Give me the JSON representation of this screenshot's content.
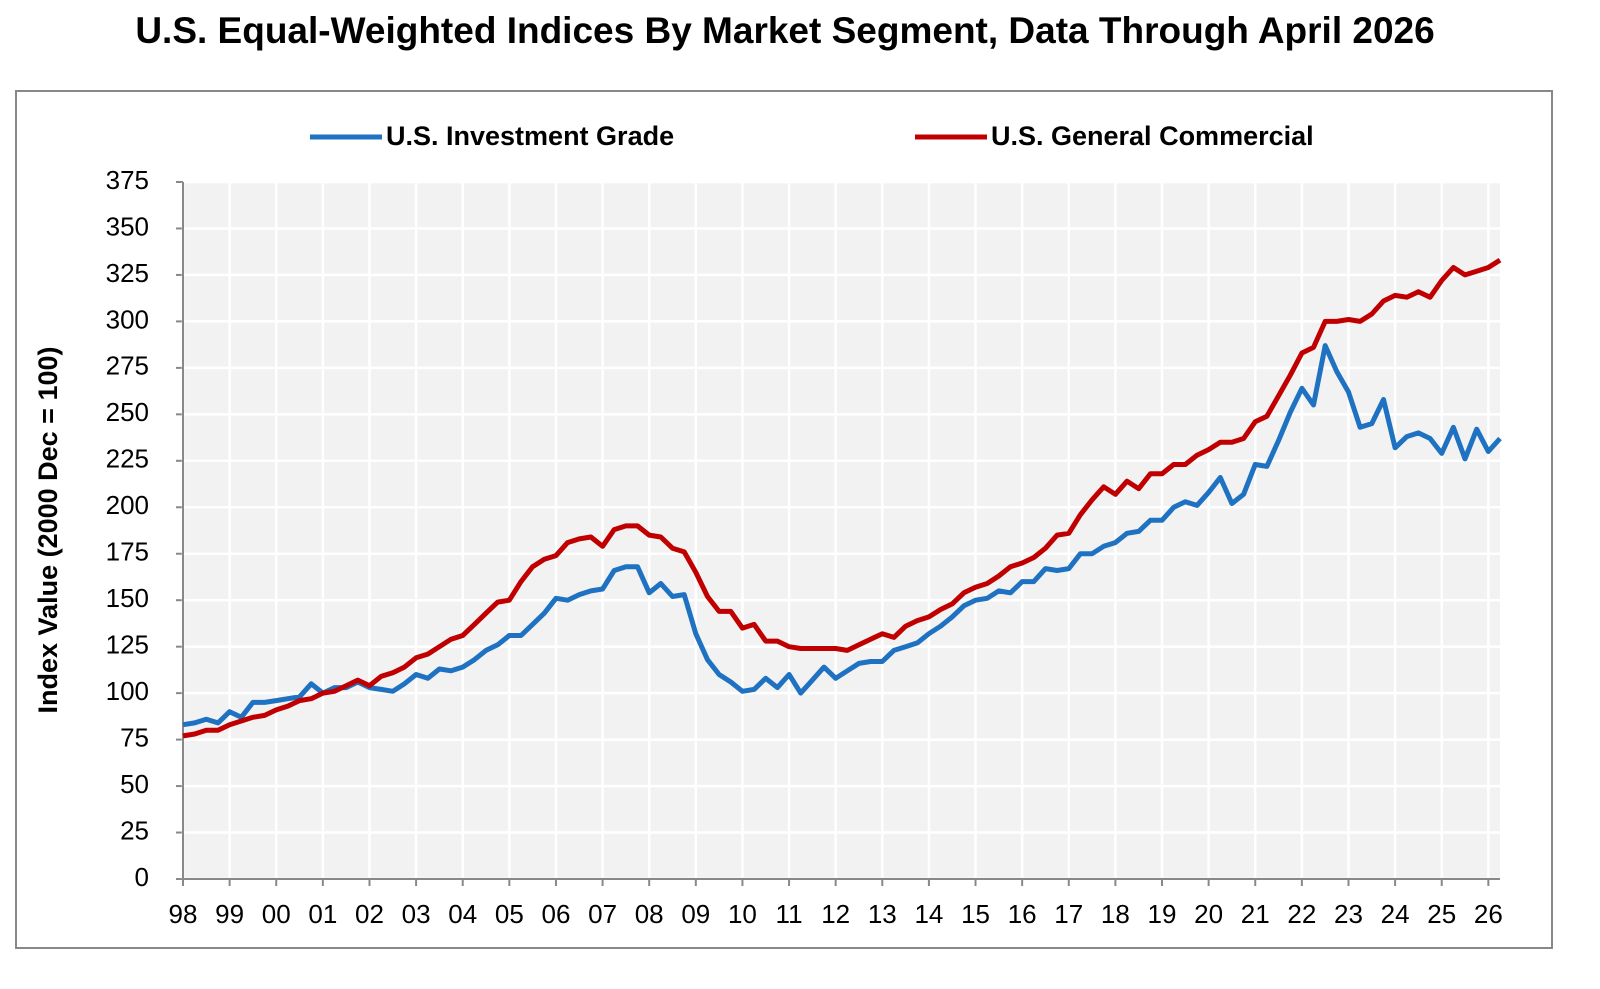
{
  "chart_data": {
    "type": "line",
    "title": "U.S. Equal-Weighted Indices By Market Segment, Data Through April 2026",
    "y_label": "Index Value (2000 Dec = 100)",
    "x": [
      1998,
      1998.25,
      1998.5,
      1998.75,
      1999,
      1999.25,
      1999.5,
      1999.75,
      2000,
      2000.25,
      2000.5,
      2000.75,
      2001,
      2001.25,
      2001.5,
      2001.75,
      2002,
      2002.25,
      2002.5,
      2002.75,
      2003,
      2003.25,
      2003.5,
      2003.75,
      2004,
      2004.25,
      2004.5,
      2004.75,
      2005,
      2005.25,
      2005.5,
      2005.75,
      2006,
      2006.25,
      2006.5,
      2006.75,
      2007,
      2007.25,
      2007.5,
      2007.75,
      2008,
      2008.25,
      2008.5,
      2008.75,
      2009,
      2009.25,
      2009.5,
      2009.75,
      2010,
      2010.25,
      2010.5,
      2010.75,
      2011,
      2011.25,
      2011.5,
      2011.75,
      2012,
      2012.25,
      2012.5,
      2012.75,
      2013,
      2013.25,
      2013.5,
      2013.75,
      2014,
      2014.25,
      2014.5,
      2014.75,
      2015,
      2015.25,
      2015.5,
      2015.75,
      2016,
      2016.25,
      2016.5,
      2016.75,
      2017,
      2017.25,
      2017.5,
      2017.75,
      2018,
      2018.25,
      2018.5,
      2018.75,
      2019,
      2019.25,
      2019.5,
      2019.75,
      2020,
      2020.25,
      2020.5,
      2020.75,
      2021,
      2021.25,
      2021.5,
      2021.75,
      2022,
      2022.25,
      2022.5,
      2022.75,
      2023,
      2023.25,
      2023.5,
      2023.75,
      2024,
      2024.25,
      2024.5,
      2024.75,
      2025,
      2025.25,
      2025.5,
      2025.75,
      2026,
      2026.25
    ],
    "series": [
      {
        "name": "U.S. Investment Grade",
        "color": "#1f72c1",
        "values": [
          83,
          84,
          86,
          84,
          90,
          87,
          95,
          95,
          96,
          97,
          98,
          105,
          100,
          103,
          103,
          106,
          103,
          102,
          101,
          105,
          110,
          108,
          113,
          112,
          114,
          118,
          123,
          126,
          131,
          131,
          137,
          143,
          151,
          150,
          153,
          155,
          156,
          166,
          168,
          168,
          154,
          159,
          152,
          153,
          132,
          118,
          110,
          106,
          101,
          102,
          108,
          103,
          110,
          100,
          107,
          114,
          108,
          112,
          116,
          117,
          117,
          123,
          125,
          127,
          132,
          136,
          141,
          147,
          150,
          151,
          155,
          154,
          160,
          160,
          167,
          166,
          167,
          175,
          175,
          179,
          181,
          186,
          187,
          193,
          193,
          200,
          203,
          201,
          208,
          216,
          202,
          207,
          223,
          222,
          236,
          251,
          264,
          255,
          287,
          273,
          262,
          243,
          245,
          258,
          232,
          238,
          240,
          237,
          229,
          243,
          226,
          242,
          230,
          237
        ]
      },
      {
        "name": "U.S. General Commercial",
        "color": "#c00000",
        "values": [
          77,
          78,
          80,
          80,
          83,
          85,
          87,
          88,
          91,
          93,
          96,
          97,
          100,
          101,
          104,
          107,
          104,
          109,
          111,
          114,
          119,
          121,
          125,
          129,
          131,
          137,
          143,
          149,
          150,
          160,
          168,
          172,
          174,
          181,
          183,
          184,
          179,
          188,
          190,
          190,
          185,
          184,
          178,
          176,
          165,
          152,
          144,
          144,
          135,
          137,
          128,
          128,
          125,
          124,
          124,
          124,
          124,
          123,
          126,
          129,
          132,
          130,
          136,
          139,
          141,
          145,
          148,
          154,
          157,
          159,
          163,
          168,
          170,
          173,
          178,
          185,
          186,
          196,
          204,
          211,
          207,
          214,
          210,
          218,
          218,
          223,
          223,
          228,
          231,
          235,
          235,
          237,
          246,
          249,
          260,
          271,
          283,
          286,
          300,
          300,
          301,
          300,
          304,
          311,
          314,
          313,
          316,
          313,
          322,
          329,
          325,
          327,
          329,
          333
        ]
      }
    ],
    "xlim": [
      1998,
      2026.25
    ],
    "xticks": [
      {
        "value": 1998,
        "label": "98"
      },
      {
        "value": 1999,
        "label": "99"
      },
      {
        "value": 2000,
        "label": "00"
      },
      {
        "value": 2001,
        "label": "01"
      },
      {
        "value": 2002,
        "label": "02"
      },
      {
        "value": 2003,
        "label": "03"
      },
      {
        "value": 2004,
        "label": "04"
      },
      {
        "value": 2005,
        "label": "05"
      },
      {
        "value": 2006,
        "label": "06"
      },
      {
        "value": 2007,
        "label": "07"
      },
      {
        "value": 2008,
        "label": "08"
      },
      {
        "value": 2009,
        "label": "09"
      },
      {
        "value": 2010,
        "label": "10"
      },
      {
        "value": 2011,
        "label": "11"
      },
      {
        "value": 2012,
        "label": "12"
      },
      {
        "value": 2013,
        "label": "13"
      },
      {
        "value": 2014,
        "label": "14"
      },
      {
        "value": 2015,
        "label": "15"
      },
      {
        "value": 2016,
        "label": "16"
      },
      {
        "value": 2017,
        "label": "17"
      },
      {
        "value": 2018,
        "label": "18"
      },
      {
        "value": 2019,
        "label": "19"
      },
      {
        "value": 2020,
        "label": "20"
      },
      {
        "value": 2021,
        "label": "21"
      },
      {
        "value": 2022,
        "label": "22"
      },
      {
        "value": 2023,
        "label": "23"
      },
      {
        "value": 2024,
        "label": "24"
      },
      {
        "value": 2025,
        "label": "25"
      },
      {
        "value": 2026,
        "label": "26"
      }
    ],
    "ylim": [
      0,
      375
    ],
    "yticks": [
      0,
      25,
      50,
      75,
      100,
      125,
      150,
      175,
      200,
      225,
      250,
      275,
      300,
      325,
      350,
      375
    ],
    "grid": true
  }
}
